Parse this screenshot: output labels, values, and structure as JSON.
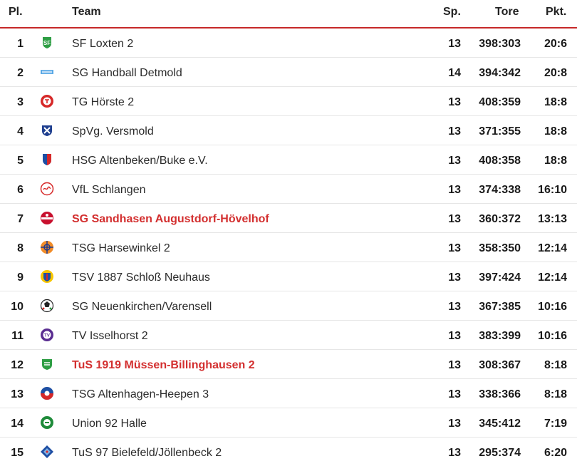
{
  "header": {
    "pl": "Pl.",
    "team": "Team",
    "sp": "Sp.",
    "tore": "Tore",
    "pkt": "Pkt."
  },
  "rows": [
    {
      "pl": "1",
      "team": "SF Loxten 2",
      "sp": "13",
      "tore": "398:303",
      "pkt": "20:6",
      "logo": "green-shield-icon",
      "highlight": false
    },
    {
      "pl": "2",
      "team": "SG Handball Detmold",
      "sp": "14",
      "tore": "394:342",
      "pkt": "20:8",
      "logo": "blue-banner-icon",
      "highlight": false
    },
    {
      "pl": "3",
      "team": "TG Hörste 2",
      "sp": "13",
      "tore": "408:359",
      "pkt": "18:8",
      "logo": "red-crest-icon",
      "highlight": false
    },
    {
      "pl": "4",
      "team": "SpVg. Versmold",
      "sp": "13",
      "tore": "371:355",
      "pkt": "18:8",
      "logo": "blue-cross-shield-icon",
      "highlight": false
    },
    {
      "pl": "5",
      "team": "HSG Altenbeken/Buke e.V.",
      "sp": "13",
      "tore": "408:358",
      "pkt": "18:8",
      "logo": "blue-red-shield-icon",
      "highlight": false
    },
    {
      "pl": "6",
      "team": "VfL Schlangen",
      "sp": "13",
      "tore": "374:338",
      "pkt": "16:10",
      "logo": "red-snake-icon",
      "highlight": false
    },
    {
      "pl": "7",
      "team": "SG Sandhasen Augustdorf-Hövelhof",
      "sp": "13",
      "tore": "360:372",
      "pkt": "13:13",
      "logo": "red-round-badge-icon",
      "highlight": true
    },
    {
      "pl": "8",
      "team": "TSG Harsewinkel 2",
      "sp": "13",
      "tore": "358:350",
      "pkt": "12:14",
      "logo": "orange-ball-icon",
      "highlight": false
    },
    {
      "pl": "9",
      "team": "TSV 1887 Schloß Neuhaus",
      "sp": "13",
      "tore": "397:424",
      "pkt": "12:14",
      "logo": "yellow-blue-crest-icon",
      "highlight": false
    },
    {
      "pl": "10",
      "team": "SG Neuenkirchen/Varensell",
      "sp": "13",
      "tore": "367:385",
      "pkt": "10:16",
      "logo": "handball-icon",
      "highlight": false
    },
    {
      "pl": "11",
      "team": "TV Isselhorst 2",
      "sp": "13",
      "tore": "383:399",
      "pkt": "10:16",
      "logo": "purple-round-badge-icon",
      "highlight": false
    },
    {
      "pl": "12",
      "team": "TuS 1919 Müssen-Billinghausen 2",
      "sp": "13",
      "tore": "308:367",
      "pkt": "8:18",
      "logo": "green-heraldic-shield-icon",
      "highlight": true
    },
    {
      "pl": "13",
      "team": "TSG Altenhagen-Heepen 3",
      "sp": "13",
      "tore": "338:366",
      "pkt": "8:18",
      "logo": "blue-red-ball-icon",
      "highlight": false
    },
    {
      "pl": "14",
      "team": "Union 92 Halle",
      "sp": "13",
      "tore": "345:412",
      "pkt": "7:19",
      "logo": "green-round-badge-icon",
      "highlight": false
    },
    {
      "pl": "15",
      "team": "TuS 97 Bielefeld/Jöllenbeck 2",
      "sp": "13",
      "tore": "295:374",
      "pkt": "6:20",
      "logo": "blue-diamond-icon",
      "highlight": false
    }
  ]
}
